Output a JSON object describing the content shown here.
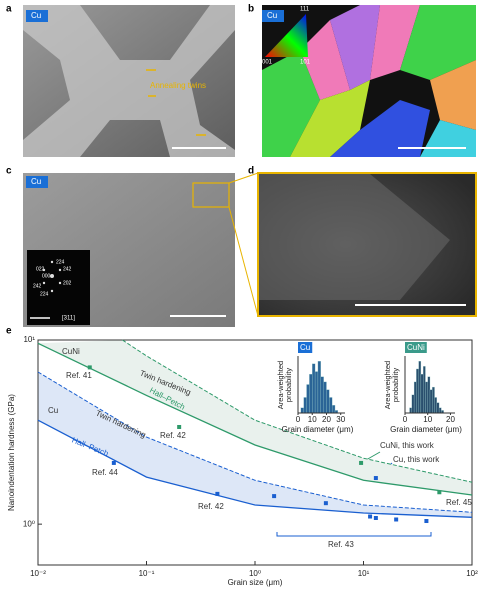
{
  "panels": {
    "a": {
      "label": "a",
      "tag": "Cu",
      "annotation": "Annealing twins"
    },
    "b": {
      "label": "b",
      "tag": "Cu",
      "triangle": [
        "111",
        "001",
        "101"
      ]
    },
    "c": {
      "label": "c",
      "tag": "Cu",
      "spots": [
        "224",
        "022",
        "242",
        "000",
        "202",
        "242",
        "224"
      ],
      "zone": "[311]"
    },
    "d": {
      "label": "d"
    },
    "e": {
      "label": "e"
    }
  },
  "chart_data": [
    {
      "type": "line",
      "xscale": "log",
      "yscale": "log",
      "xlabel": "Grain size (μm)",
      "ylabel": "Nanoindentation hardness (GPa)",
      "xlim": [
        0.01,
        100
      ],
      "ylim": [
        0.6,
        10
      ],
      "xticks": [
        {
          "value": 0.01,
          "label": "10⁻²"
        },
        {
          "value": 0.1,
          "label": "10⁻¹"
        },
        {
          "value": 1,
          "label": "10⁰"
        },
        {
          "value": 10,
          "label": "10¹"
        },
        {
          "value": 100,
          "label": "10²"
        }
      ],
      "yticks": [
        {
          "value": 1,
          "label": "10⁰"
        },
        {
          "value": 10,
          "label": "10¹"
        }
      ],
      "series": [
        {
          "mode": "solid",
          "color": "#1a5fd0",
          "x": [
            0.01,
            0.1,
            1,
            10,
            100
          ],
          "values": [
            3.67,
            1.8,
            1.27,
            1.15,
            1.09
          ]
        },
        {
          "mode": "dashed",
          "color": "#1a5fd0",
          "band_fill": "#dde7f7",
          "x": [
            0.01,
            0.1,
            1,
            10,
            100
          ],
          "values": [
            6.7,
            2.97,
            1.73,
            1.27,
            1.16
          ]
        },
        {
          "mode": "solid",
          "color": "#2e9a6a",
          "x": [
            0.01,
            0.1,
            1,
            10,
            100
          ],
          "values": [
            9.6,
            5.0,
            2.69,
            1.73,
            1.44
          ]
        },
        {
          "mode": "dashed",
          "color": "#2e9a6a",
          "band_fill": "#e9f1ed",
          "x": [
            0.06,
            0.1,
            1,
            10,
            100
          ],
          "values": [
            10,
            8.2,
            3.67,
            2.28,
            1.69
          ]
        },
        {
          "mode": "markers",
          "color": "#1a5fd0",
          "x": [
            0.05,
            0.45,
            1.5,
            4.5,
            11.5,
            13,
            20,
            38
          ],
          "values": [
            2.15,
            1.46,
            1.42,
            1.3,
            1.1,
            1.08,
            1.06,
            1.04
          ]
        },
        {
          "mode": "markers",
          "color": "#1a5fd0",
          "x": [
            13
          ],
          "values": [
            1.78
          ]
        },
        {
          "mode": "markers",
          "color": "#2e9a6a",
          "x": [
            0.03,
            0.2,
            50
          ],
          "values": [
            7.1,
            3.37,
            1.49
          ]
        },
        {
          "mode": "markers",
          "color": "#2e9a6a",
          "x": [
            9.5
          ],
          "values": [
            2.15
          ]
        }
      ],
      "annotations": [
        "CuNi",
        "Cu",
        "Twin hardening",
        "Hall–Petch",
        "Twin hardening",
        "Hall–Petch",
        "Ref. 41",
        "Ref. 42",
        "Ref. 44",
        "Ref. 42",
        "Ref. 45",
        "Ref. 43",
        "CuNi, this work",
        "Cu, this work"
      ]
    },
    {
      "type": "histogram",
      "title": "Cu",
      "title_color": "#1a6fd6",
      "color": "#2a6496",
      "xlabel": "Grain diameter (μm)",
      "ylabel": "Area-weighted probability",
      "bins": [
        0,
        2,
        4,
        6,
        8,
        10,
        12,
        14,
        16,
        18,
        20,
        22,
        24,
        26,
        28,
        30
      ],
      "values": [
        0,
        0.1,
        0.3,
        0.55,
        0.75,
        0.95,
        0.8,
        1.0,
        0.7,
        0.6,
        0.45,
        0.3,
        0.15,
        0.05,
        0
      ],
      "xlim": [
        0,
        33
      ],
      "ylim": [
        0,
        1.1
      ],
      "xticks": [
        0,
        10,
        20,
        30
      ]
    },
    {
      "type": "histogram",
      "title": "CuNi",
      "title_color": "#3a9a8a",
      "color": "#2a4f6e",
      "xlabel": "Grain diameter (μm)",
      "ylabel": "Area-weighted probability",
      "bins": [
        0,
        1,
        2,
        3,
        4,
        5,
        6,
        7,
        8,
        9,
        10,
        11,
        12,
        13,
        14,
        15,
        16,
        17,
        18,
        19,
        20
      ],
      "values": [
        0,
        0,
        0.1,
        0.35,
        0.6,
        0.85,
        1.0,
        0.75,
        0.9,
        0.6,
        0.7,
        0.45,
        0.5,
        0.3,
        0.2,
        0.1,
        0.05,
        0,
        0,
        0
      ],
      "xlim": [
        0,
        22
      ],
      "ylim": [
        0,
        1.1
      ],
      "xticks": [
        0,
        10,
        20
      ]
    }
  ]
}
